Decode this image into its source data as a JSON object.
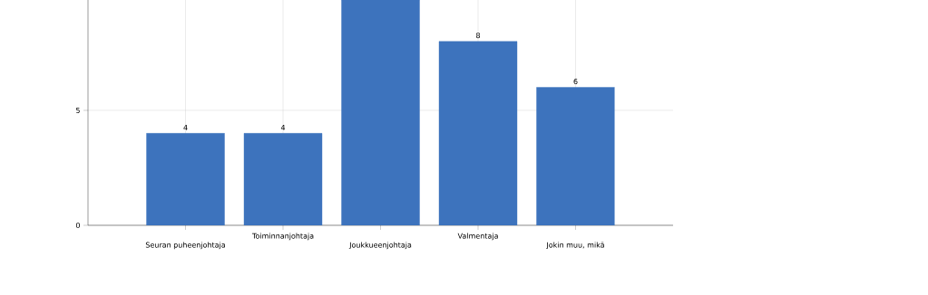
{
  "chart_data": {
    "type": "bar",
    "categories": [
      "Seuran puheenjohtaja",
      "Toiminnanjohtaja",
      "Joukkueenjohtaja",
      "Valmentaja",
      "Jokin muu, mikä"
    ],
    "values": [
      4,
      4,
      9.8,
      8,
      6
    ],
    "value_labels": [
      "4",
      "4",
      null,
      "8",
      "6"
    ],
    "color": "#3d73bd",
    "ylim": [
      0,
      9.8
    ],
    "yticks": [
      0,
      5
    ],
    "grid": true
  }
}
